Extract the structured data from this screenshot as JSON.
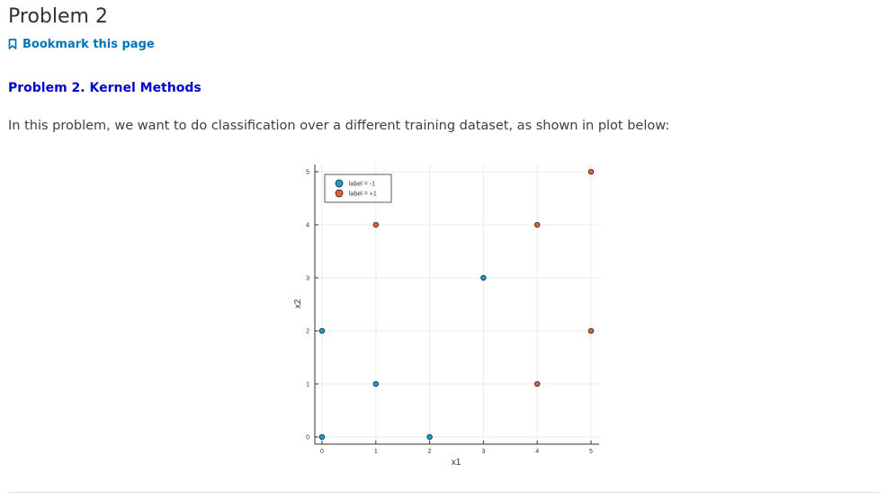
{
  "page": {
    "title": "Problem 2",
    "bookmark_label": "Bookmark this page",
    "section_heading": "Problem 2. Kernel Methods",
    "intro_text": "In this problem, we want to do classification over a different training dataset, as shown in plot below:"
  },
  "colors": {
    "title": "#313131",
    "link": "#0075b4",
    "heading": "#0000cc",
    "label_neg": "#1f9ad8",
    "label_pos": "#e2603f"
  },
  "chart_data": {
    "type": "scatter",
    "xlabel": "x1",
    "ylabel": "x2",
    "xlim": [
      0,
      5
    ],
    "ylim": [
      0,
      5
    ],
    "xticks": [
      "0",
      "1",
      "2",
      "3",
      "4",
      "5"
    ],
    "yticks": [
      "0",
      "1",
      "2",
      "3",
      "4",
      "5"
    ],
    "grid": true,
    "legend_position": "top-left",
    "series": [
      {
        "name": "label = -1",
        "color": "#1f9ad8",
        "points": [
          [
            0,
            0
          ],
          [
            2,
            0
          ],
          [
            1,
            1
          ],
          [
            0,
            2
          ],
          [
            3,
            3
          ]
        ]
      },
      {
        "name": "label = +1",
        "color": "#e2603f",
        "points": [
          [
            5,
            5
          ],
          [
            1,
            4
          ],
          [
            4,
            4
          ],
          [
            5,
            2
          ],
          [
            4,
            1
          ]
        ]
      }
    ]
  }
}
